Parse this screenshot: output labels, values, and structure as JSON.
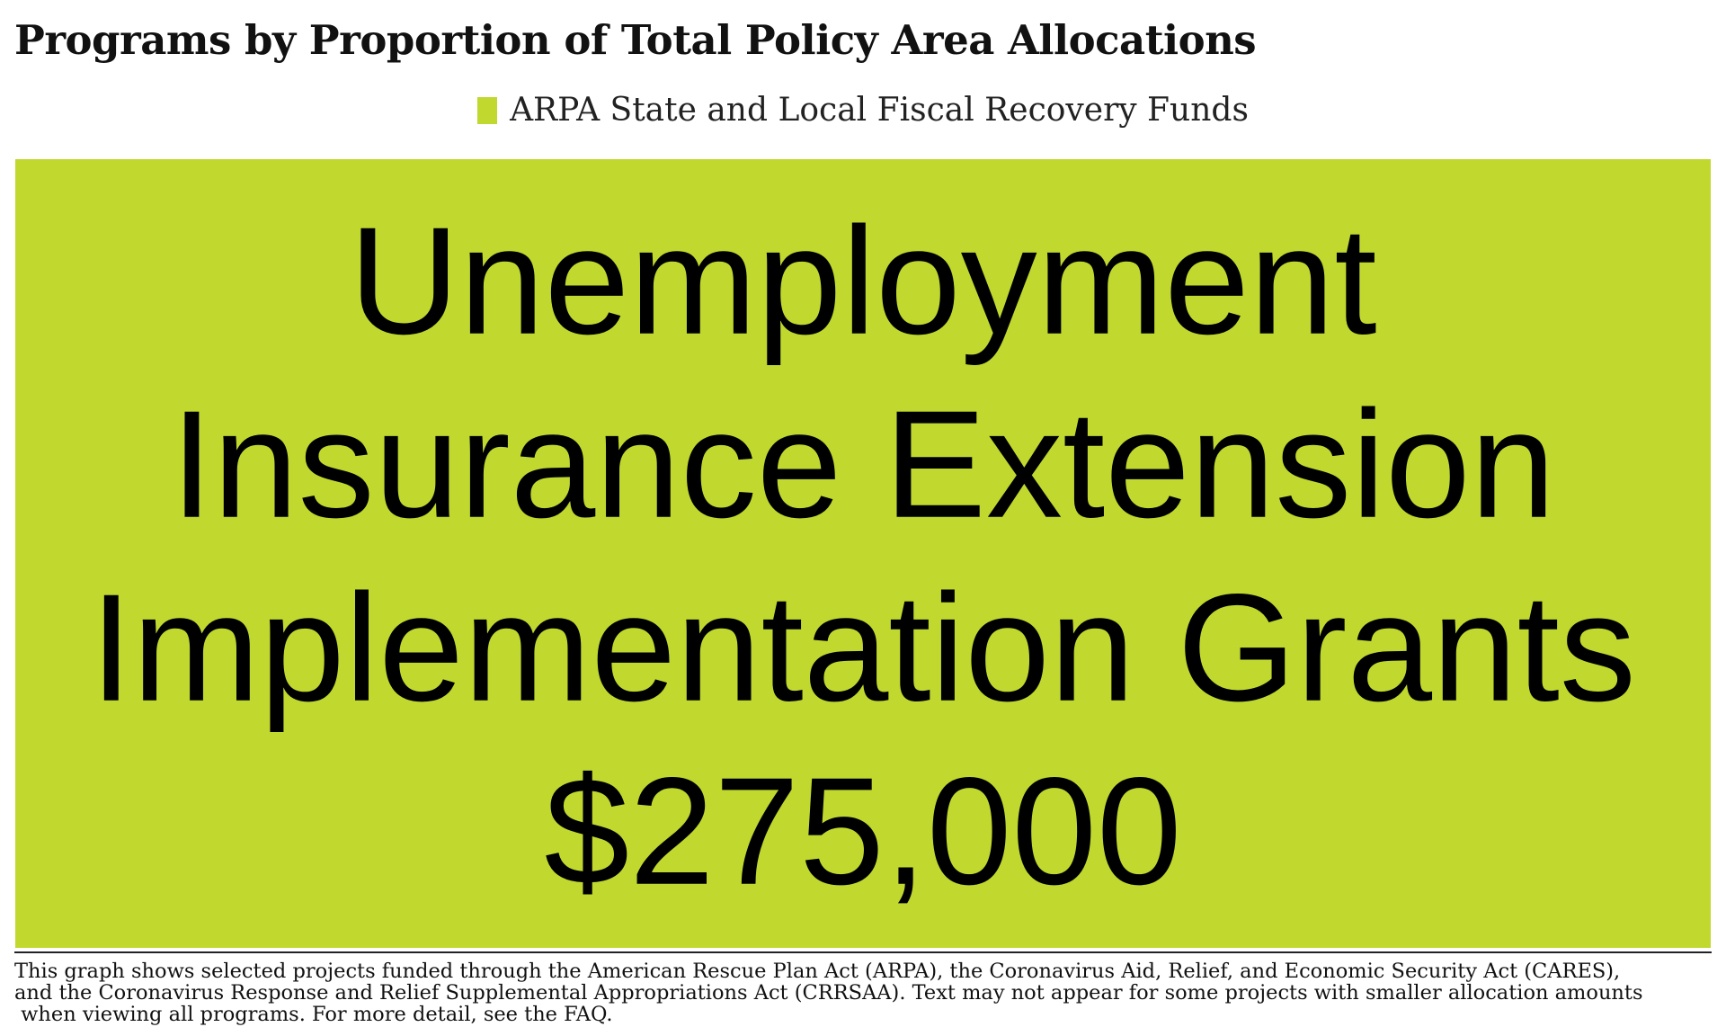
{
  "chart_data": {
    "type": "treemap",
    "title": "Programs by Proportion of Total Policy Area Allocations",
    "legend": {
      "placement": "top-center",
      "entries": [
        {
          "name": "ARPA State and Local Fiscal Recovery Funds",
          "color": "#c1d82f"
        }
      ]
    },
    "tiles": [
      {
        "label_lines": [
          "Unemployment",
          "Insurance Extension",
          "Implementation Grants",
          "$275,000"
        ],
        "program": "Unemployment Insurance Extension Implementation Grants",
        "value": 275000,
        "display_value": "$275,000",
        "series": "ARPA State and Local Fiscal Recovery Funds",
        "color": "#c1d82f"
      }
    ]
  },
  "footnote": {
    "lines": [
      "This graph shows selected projects funded through the American Rescue Plan Act (ARPA), the Coronavirus Aid, Relief, and Economic Security Act (CARES),",
      "and the Coronavirus Response and Relief Supplemental Appropriations Act (CRRSAA). Text may not appear for some projects with smaller allocation amounts",
      " when viewing all programs. For more detail, see the FAQ."
    ]
  }
}
